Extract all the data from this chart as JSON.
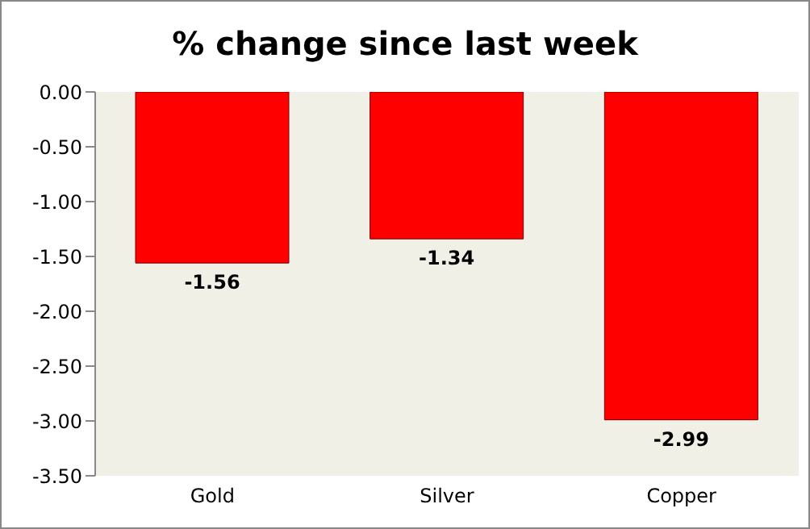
{
  "chart_data": {
    "type": "bar",
    "title": "% change since last week",
    "categories": [
      "Gold",
      "Silver",
      "Copper"
    ],
    "values": [
      -1.56,
      -1.34,
      -2.99
    ],
    "color": "#ff0000",
    "ylim": [
      -3.5,
      0
    ],
    "yticks": [
      {
        "value": 0,
        "label": "0.00"
      },
      {
        "value": -0.5,
        "label": "-0.50"
      },
      {
        "value": -1,
        "label": "-1.00"
      },
      {
        "value": -1.5,
        "label": "-1.50"
      },
      {
        "value": -2,
        "label": "-2.00"
      },
      {
        "value": -2.5,
        "label": "-2.50"
      },
      {
        "value": -3,
        "label": "-3.00"
      },
      {
        "value": -3.5,
        "label": "-3.50"
      }
    ],
    "data_labels": true,
    "grid": false,
    "legend": false
  }
}
